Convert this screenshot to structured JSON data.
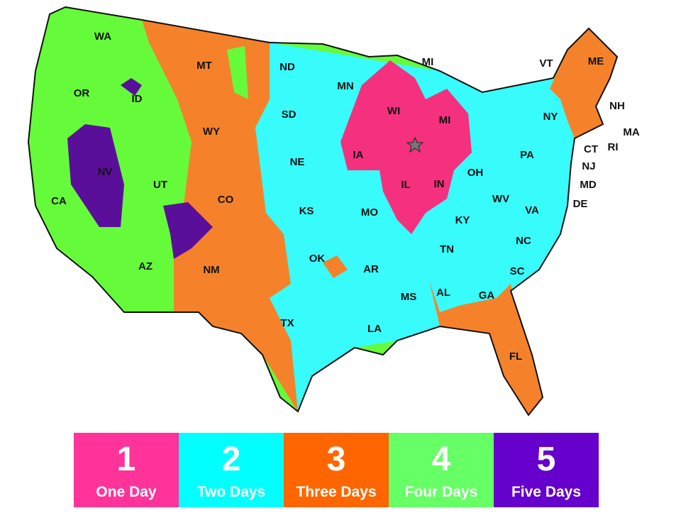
{
  "colors": {
    "one": "#f5307f",
    "two": "#38fbfb",
    "three": "#f5822a",
    "four": "#66fb3a",
    "five": "#5a0f9a",
    "legend": [
      "#ff3399",
      "#00ffff",
      "#ff6600",
      "#66ff66",
      "#6600cc"
    ]
  },
  "origin_marker": "star-icon",
  "states": [
    [
      "WA",
      145,
      52
    ],
    [
      "OR",
      115,
      132
    ],
    [
      "ID",
      193,
      140
    ],
    [
      "MT",
      288,
      93
    ],
    [
      "ND",
      405,
      95
    ],
    [
      "MN",
      487,
      122
    ],
    [
      "MI",
      603,
      88
    ],
    [
      "VT",
      770,
      90
    ],
    [
      "ME",
      840,
      87
    ],
    [
      "NH",
      870,
      150
    ],
    [
      "MA",
      890,
      187
    ],
    [
      "RI",
      864,
      208
    ],
    [
      "CT",
      833,
      211
    ],
    [
      "NJ",
      830,
      235
    ],
    [
      "MD",
      829,
      261
    ],
    [
      "DE",
      818,
      288
    ],
    [
      "NY",
      776,
      165
    ],
    [
      "PA",
      743,
      219
    ],
    [
      "OH",
      670,
      244
    ],
    [
      "WV",
      706,
      281
    ],
    [
      "VA",
      750,
      297
    ],
    [
      "KY",
      652,
      311
    ],
    [
      "TN",
      630,
      352
    ],
    [
      "NC",
      738,
      340
    ],
    [
      "SC",
      729,
      383
    ],
    [
      "GA",
      686,
      417
    ],
    [
      "AL",
      625,
      413
    ],
    [
      "MS",
      576,
      419
    ],
    [
      "FL",
      727,
      503
    ],
    [
      "LA",
      528,
      464
    ],
    [
      "AR",
      523,
      380
    ],
    [
      "MO",
      521,
      300
    ],
    [
      "IL",
      572,
      261
    ],
    [
      "IN",
      619,
      260
    ],
    [
      "IA",
      505,
      219
    ],
    [
      "WI",
      555,
      157
    ],
    [
      "MI",
      627,
      170
    ],
    [
      "SD",
      407,
      162
    ],
    [
      "NE",
      419,
      229
    ],
    [
      "KS",
      432,
      298
    ],
    [
      "OK",
      447,
      365
    ],
    [
      "TX",
      405,
      456
    ],
    [
      "NM",
      298,
      381
    ],
    [
      "CO",
      318,
      282
    ],
    [
      "WY",
      298,
      186
    ],
    [
      "UT",
      226,
      261
    ],
    [
      "NV",
      148,
      243
    ],
    [
      "CA",
      83,
      284
    ],
    [
      "AZ",
      205,
      376
    ]
  ],
  "legend": [
    {
      "number": "1",
      "label": "One Day"
    },
    {
      "number": "2",
      "label": "Two Days"
    },
    {
      "number": "3",
      "label": "Three Days"
    },
    {
      "number": "4",
      "label": "Four Days"
    },
    {
      "number": "5",
      "label": "Five Days"
    }
  ]
}
